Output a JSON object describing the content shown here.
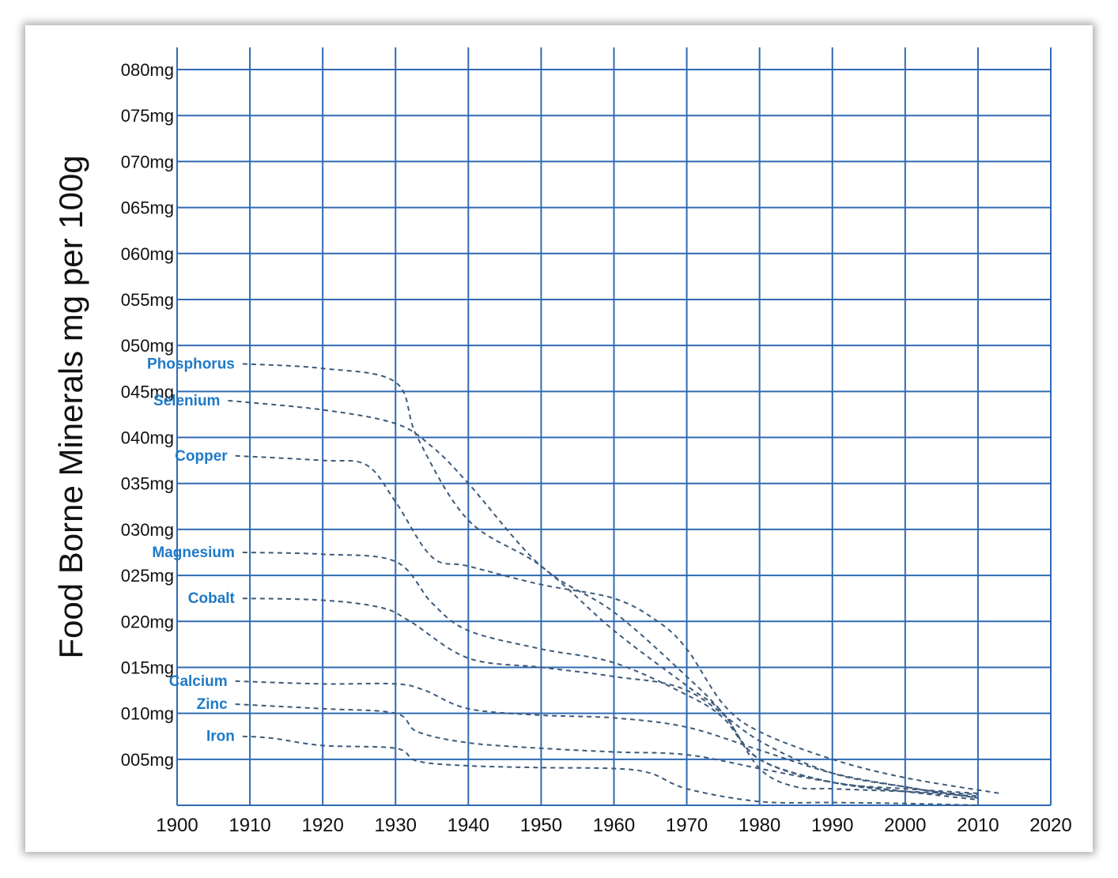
{
  "chart_data": {
    "type": "line",
    "title": "",
    "xlabel": "",
    "ylabel": "Food Borne Minerals mg per 100g",
    "xlim": [
      1900,
      2020
    ],
    "ylim": [
      0,
      80
    ],
    "grid": true,
    "x_ticks": [
      1900,
      1910,
      1920,
      1930,
      1940,
      1950,
      1960,
      1970,
      1980,
      1990,
      2000,
      2010,
      2020
    ],
    "x_tick_labels": [
      "1900",
      "1910",
      "1920",
      "1930",
      "1940",
      "1950",
      "1960",
      "1970",
      "1980",
      "1990",
      "2000",
      "2010",
      "2020"
    ],
    "y_ticks": [
      5,
      10,
      15,
      20,
      25,
      30,
      35,
      40,
      45,
      50,
      55,
      60,
      65,
      70,
      75,
      80
    ],
    "y_tick_labels": [
      "005mg",
      "010mg",
      "015mg",
      "020mg",
      "025mg",
      "030mg",
      "035mg",
      "040mg",
      "045mg",
      "050mg",
      "055mg",
      "060mg",
      "065mg",
      "070mg",
      "075mg",
      "080mg"
    ],
    "series": [
      {
        "name": "Phosphorus",
        "x": [
          1909,
          1920,
          1930,
          1933,
          1940,
          1950,
          1960,
          1970,
          1975,
          1980,
          1985,
          1990,
          2000,
          2010
        ],
        "y": [
          48,
          47.5,
          46,
          40,
          31,
          26,
          19,
          13,
          10,
          4,
          2,
          1.8,
          1.5,
          1.2
        ]
      },
      {
        "name": "Selenium",
        "x": [
          1907,
          1920,
          1930,
          1935,
          1940,
          1950,
          1960,
          1970,
          1975,
          1980,
          1990,
          2000,
          2010
        ],
        "y": [
          44,
          43,
          41.5,
          39,
          35,
          26,
          21,
          14,
          10,
          5,
          2.5,
          1.8,
          1.3
        ]
      },
      {
        "name": "Copper",
        "x": [
          1908,
          1920,
          1926,
          1930,
          1935,
          1940,
          1950,
          1960,
          1966,
          1970,
          1975,
          1980,
          1990,
          2000,
          2013
        ],
        "y": [
          38,
          37.5,
          37,
          33,
          27,
          26,
          24,
          22.5,
          20,
          17,
          11,
          8,
          5,
          3,
          1.3
        ]
      },
      {
        "name": "Magnesium",
        "x": [
          1909,
          1920,
          1930,
          1935,
          1940,
          1950,
          1960,
          1970,
          1975,
          1980,
          1990,
          2000,
          2010
        ],
        "y": [
          27.5,
          27.3,
          26.5,
          22,
          19,
          17,
          15.5,
          12,
          9.5,
          5,
          2.5,
          1.5,
          1
        ]
      },
      {
        "name": "Cobalt",
        "x": [
          1909,
          1920,
          1928,
          1932,
          1940,
          1950,
          1960,
          1970,
          1980,
          1990,
          2000,
          2010
        ],
        "y": [
          22.5,
          22.3,
          21.5,
          20,
          16,
          15,
          14,
          12.5,
          7,
          3.5,
          2,
          0.8
        ]
      },
      {
        "name": "Calcium",
        "x": [
          1908,
          1920,
          1930,
          1934,
          1940,
          1950,
          1960,
          1970,
          1980,
          1990,
          2000,
          2010
        ],
        "y": [
          13.5,
          13.2,
          13.2,
          12.5,
          10.5,
          9.8,
          9.5,
          8.5,
          6,
          3.5,
          2,
          0.8
        ]
      },
      {
        "name": "Zinc",
        "x": [
          1908,
          1920,
          1930,
          1933,
          1940,
          1950,
          1960,
          1970,
          1980,
          1990,
          2000,
          2010
        ],
        "y": [
          11,
          10.5,
          10,
          8,
          6.8,
          6.2,
          5.8,
          5.5,
          4,
          2.5,
          1.5,
          0.6
        ]
      },
      {
        "name": "Iron",
        "x": [
          1909,
          1913,
          1920,
          1930,
          1933,
          1940,
          1950,
          1960,
          1965,
          1970,
          1980,
          1990,
          2000,
          2010
        ],
        "y": [
          7.5,
          7.3,
          6.5,
          6.2,
          4.8,
          4.3,
          4.1,
          4,
          3.5,
          1.8,
          0.4,
          0.3,
          0.2,
          0
        ]
      }
    ]
  }
}
